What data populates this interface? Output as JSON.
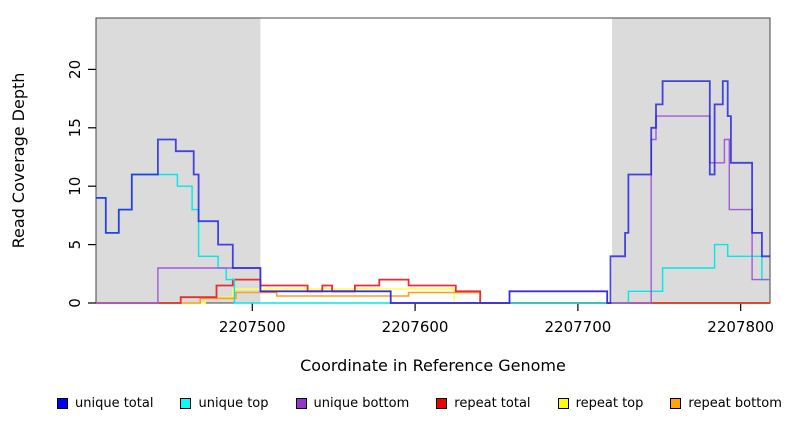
{
  "chart_data": {
    "type": "line",
    "step": true,
    "title": "",
    "xlabel": "Coordinate in Reference Genome",
    "ylabel": "Read Coverage Depth",
    "xlim": [
      2207404,
      2207818
    ],
    "ylim": [
      0,
      24.4
    ],
    "x_ticks": [
      2207500,
      2207600,
      2207700,
      2207800
    ],
    "x_tick_labels": [
      "2207500",
      "2207600",
      "2207700",
      "2207800"
    ],
    "y_ticks": [
      0,
      5,
      10,
      15,
      20
    ],
    "y_tick_labels": [
      "0",
      "5",
      "10",
      "15",
      "20"
    ],
    "grid": false,
    "legend_position": "bottom",
    "background_color": "#ffffff",
    "shaded_regions": [
      {
        "name": "left-gray-region",
        "x0": 2207404,
        "x1": 2207505,
        "color": "#dbdbdb"
      },
      {
        "name": "right-gray-region",
        "x0": 2207721,
        "x1": 2207818,
        "color": "#dbdbdb"
      }
    ],
    "series": [
      {
        "key": "repeat-top",
        "name": "repeat top",
        "color": "#ffff4d",
        "width": 1.4,
        "points": [
          [
            2207404,
            0
          ],
          [
            2207471,
            0.5
          ],
          [
            2207488,
            1.2
          ],
          [
            2207624,
            0
          ]
        ]
      },
      {
        "key": "repeat-bottom",
        "name": "repeat bottom",
        "color": "#ff9d1e",
        "width": 1.6,
        "points": [
          [
            2207404,
            0
          ],
          [
            2207468,
            0.4
          ],
          [
            2207490,
            0.9
          ],
          [
            2207515,
            0.6
          ],
          [
            2207596,
            0.9
          ],
          [
            2207640,
            0
          ]
        ]
      },
      {
        "key": "repeat-total",
        "name": "repeat total",
        "color": "#e62e2e",
        "width": 1.8,
        "points": [
          [
            2207404,
            0
          ],
          [
            2207456,
            0.5
          ],
          [
            2207478,
            1.5
          ],
          [
            2207488,
            2
          ],
          [
            2207505,
            1.5
          ],
          [
            2207534,
            1
          ],
          [
            2207543,
            1.5
          ],
          [
            2207549,
            1
          ],
          [
            2207563,
            1.5
          ],
          [
            2207578,
            2
          ],
          [
            2207596,
            1.5
          ],
          [
            2207625,
            1
          ],
          [
            2207640,
            0
          ]
        ]
      },
      {
        "key": "unique-top",
        "name": "unique top",
        "color": "#00e8e8",
        "width": 1.4,
        "points": [
          [
            2207404,
            9
          ],
          [
            2207410,
            6
          ],
          [
            2207418,
            8
          ],
          [
            2207426,
            11
          ],
          [
            2207454,
            10
          ],
          [
            2207463,
            8
          ],
          [
            2207467,
            4
          ],
          [
            2207479,
            3
          ],
          [
            2207484,
            2
          ],
          [
            2207489,
            0
          ],
          [
            2207731,
            1
          ],
          [
            2207752,
            3
          ],
          [
            2207784,
            5
          ],
          [
            2207792,
            4
          ],
          [
            2207813,
            2
          ]
        ]
      },
      {
        "key": "unique-bottom",
        "name": "unique bottom",
        "color": "#a05adc",
        "width": 1.4,
        "points": [
          [
            2207404,
            0
          ],
          [
            2207442,
            3
          ],
          [
            2207505,
            1
          ],
          [
            2207585,
            0
          ],
          [
            2207658,
            1
          ],
          [
            2207718,
            0
          ],
          [
            2207745,
            14
          ],
          [
            2207748,
            16
          ],
          [
            2207781,
            12
          ],
          [
            2207790,
            14
          ],
          [
            2207793,
            8
          ],
          [
            2207807,
            2
          ]
        ]
      },
      {
        "key": "unique-total",
        "name": "unique total",
        "color": "#2020e0",
        "width": 1.8,
        "opacity": 0.82,
        "points": [
          [
            2207404,
            9
          ],
          [
            2207410,
            6
          ],
          [
            2207418,
            8
          ],
          [
            2207426,
            11
          ],
          [
            2207442,
            14
          ],
          [
            2207453,
            13
          ],
          [
            2207464,
            11
          ],
          [
            2207467,
            7
          ],
          [
            2207479,
            5
          ],
          [
            2207488,
            3
          ],
          [
            2207505,
            1
          ],
          [
            2207585,
            0
          ],
          [
            2207658,
            1
          ],
          [
            2207718,
            0
          ],
          [
            2207720,
            4
          ],
          [
            2207729,
            6
          ],
          [
            2207731,
            11
          ],
          [
            2207745,
            15
          ],
          [
            2207748,
            17
          ],
          [
            2207752,
            19
          ],
          [
            2207781,
            11
          ],
          [
            2207784,
            17
          ],
          [
            2207789,
            19
          ],
          [
            2207792,
            16
          ],
          [
            2207794,
            12
          ],
          [
            2207807,
            6
          ],
          [
            2207813,
            4
          ]
        ]
      }
    ]
  },
  "legend": {
    "items": [
      {
        "label": "unique total",
        "color": "#0000ff"
      },
      {
        "label": "unique top",
        "color": "#00ffff"
      },
      {
        "label": "unique bottom",
        "color": "#9933cc"
      },
      {
        "label": "repeat total",
        "color": "#ee0000"
      },
      {
        "label": "repeat top",
        "color": "#ffff00"
      },
      {
        "label": "repeat bottom",
        "color": "#ffa500"
      }
    ]
  }
}
